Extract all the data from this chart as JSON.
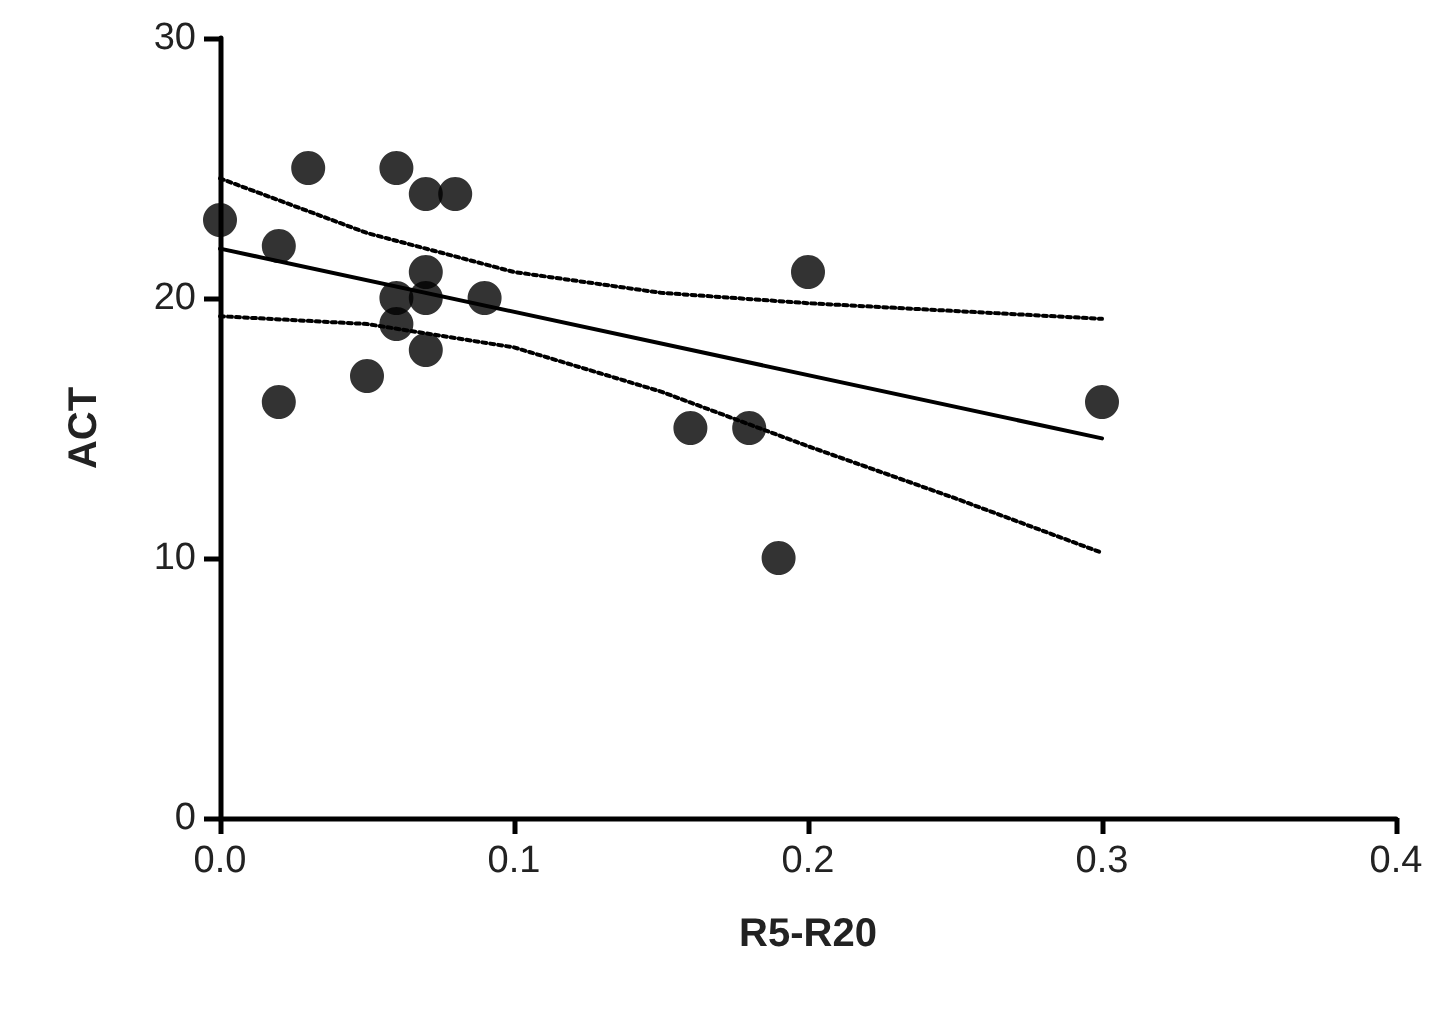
{
  "chart_data": {
    "type": "scatter",
    "xlabel": "R5-R20",
    "ylabel": "ACT",
    "xlim": [
      0,
      0.4
    ],
    "xticks": [
      {
        "value": 0,
        "label": "0.0"
      },
      0.1,
      0.2,
      0.3,
      0.4
    ],
    "ylim": [
      0,
      30
    ],
    "yticks": [
      0,
      10,
      20,
      30
    ],
    "grid": false,
    "series": [
      {
        "color": "#000000",
        "marker": "circle",
        "x": [
          0,
          0.02,
          0.03,
          0.02,
          0.05,
          0.06,
          0.06,
          0.06,
          0.07,
          0.08,
          0.07,
          0.07,
          0.07,
          0.09,
          0.16,
          0.18,
          0.19,
          0.2,
          0.3
        ],
        "values": [
          23,
          22,
          25,
          16,
          17,
          25,
          20,
          19,
          24,
          24,
          21,
          20,
          18,
          20,
          15,
          15,
          10,
          21,
          16
        ]
      },
      {
        "type": "line",
        "color": "#000000",
        "marker": "none",
        "line_style": "solid",
        "x": [
          0,
          0.3
        ],
        "values": [
          21.9,
          14.6
        ]
      },
      {
        "type": "line",
        "color": "#000000",
        "marker": "none",
        "line_style": "dotted",
        "x": [
          0,
          0.05,
          0.1,
          0.15,
          0.2,
          0.25,
          0.3
        ],
        "values": [
          24.6,
          22.5,
          21.0,
          20.2,
          19.8,
          19.5,
          19.2
        ]
      },
      {
        "type": "line",
        "color": "#000000",
        "marker": "none",
        "line_style": "dotted",
        "x": [
          0,
          0.05,
          0.1,
          0.15,
          0.2,
          0.25,
          0.3
        ],
        "values": [
          19.3,
          19.0,
          18.1,
          16.4,
          14.3,
          12.3,
          10.2
        ]
      }
    ]
  }
}
